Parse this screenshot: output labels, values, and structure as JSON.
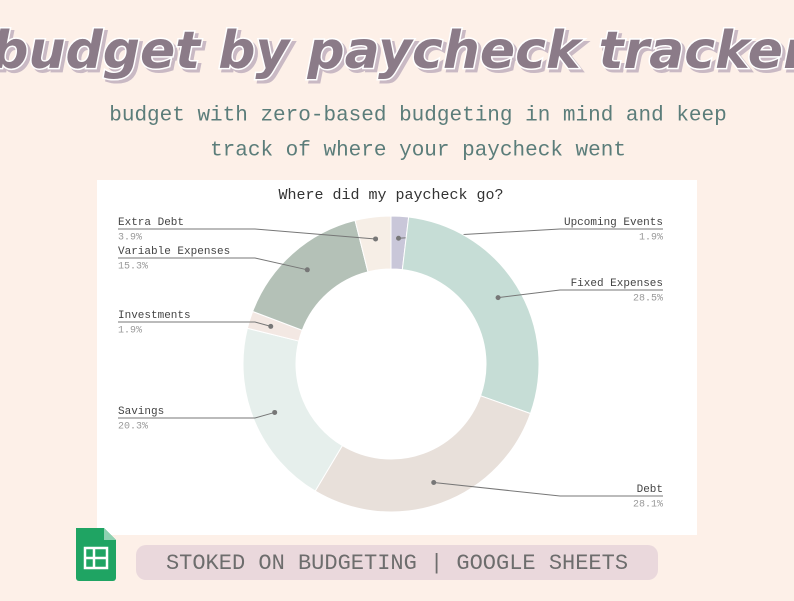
{
  "header": {
    "title": "budget by paycheck tracker",
    "subtitle_lines": [
      "budget with zero-based budgeting in mind and keep",
      "track of where your paycheck went"
    ]
  },
  "chart_data": {
    "type": "donut",
    "title": "Where did my paycheck go?",
    "categories": [
      "Upcoming Events",
      "Fixed Expenses",
      "Debt",
      "Savings",
      "Investments",
      "Variable Expenses",
      "Extra Debt"
    ],
    "values": [
      1.9,
      28.5,
      28.1,
      20.3,
      1.9,
      15.3,
      3.9
    ],
    "value_labels": [
      "1.9%",
      "28.5%",
      "28.1%",
      "20.3%",
      "1.9%",
      "15.3%",
      "3.9%"
    ],
    "colors": [
      "#c9c7d9",
      "#c6ddd6",
      "#e8e0da",
      "#e6efec",
      "#f3e8e3",
      "#b4c1b7",
      "#f6eee6"
    ]
  },
  "footer": {
    "text": "STOKED ON BUDGETING | GOOGLE SHEETS"
  }
}
